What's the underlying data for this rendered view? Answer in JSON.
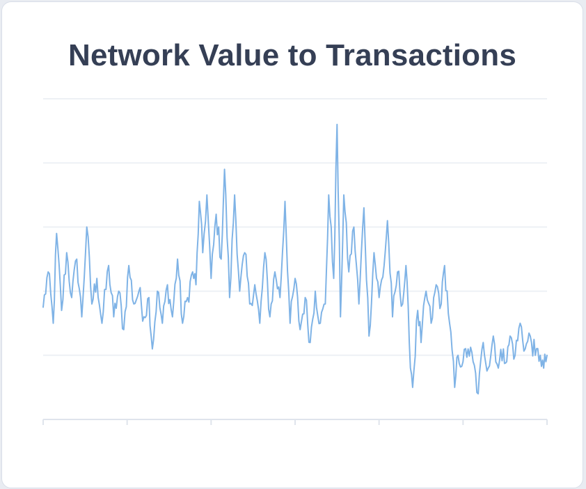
{
  "chart_data": {
    "type": "line",
    "title": "Network Value to Transactions",
    "xlabel": "",
    "ylabel": "",
    "ylim": [
      0,
      5
    ],
    "xlim": [
      0,
      600
    ],
    "grid": true,
    "line_color": "#7fb3e6",
    "grid_color": "#edf0f5",
    "axis_color": "#dfe4ec",
    "anchors": [
      [
        0,
        1.75
      ],
      [
        6,
        2.3
      ],
      [
        12,
        1.5
      ],
      [
        16,
        2.9
      ],
      [
        22,
        1.7
      ],
      [
        28,
        2.6
      ],
      [
        34,
        1.9
      ],
      [
        40,
        2.5
      ],
      [
        46,
        1.6
      ],
      [
        52,
        3.0
      ],
      [
        58,
        1.8
      ],
      [
        64,
        2.2
      ],
      [
        70,
        1.5
      ],
      [
        78,
        2.4
      ],
      [
        84,
        1.6
      ],
      [
        90,
        2.0
      ],
      [
        96,
        1.4
      ],
      [
        102,
        2.4
      ],
      [
        108,
        1.8
      ],
      [
        114,
        2.0
      ],
      [
        120,
        1.6
      ],
      [
        126,
        1.9
      ],
      [
        130,
        1.1
      ],
      [
        136,
        2.0
      ],
      [
        142,
        1.5
      ],
      [
        148,
        2.1
      ],
      [
        154,
        1.6
      ],
      [
        160,
        2.5
      ],
      [
        166,
        1.5
      ],
      [
        172,
        1.9
      ],
      [
        178,
        2.3
      ],
      [
        182,
        2.1
      ],
      [
        186,
        3.4
      ],
      [
        190,
        2.6
      ],
      [
        195,
        3.5
      ],
      [
        200,
        2.2
      ],
      [
        206,
        3.2
      ],
      [
        212,
        2.5
      ],
      [
        216,
        3.9
      ],
      [
        222,
        1.9
      ],
      [
        228,
        3.5
      ],
      [
        234,
        2.0
      ],
      [
        240,
        2.6
      ],
      [
        246,
        1.8
      ],
      [
        252,
        2.1
      ],
      [
        258,
        1.5
      ],
      [
        264,
        2.6
      ],
      [
        270,
        1.6
      ],
      [
        276,
        2.3
      ],
      [
        282,
        1.9
      ],
      [
        288,
        3.4
      ],
      [
        294,
        1.5
      ],
      [
        300,
        2.2
      ],
      [
        306,
        1.4
      ],
      [
        312,
        1.9
      ],
      [
        318,
        1.2
      ],
      [
        324,
        2.0
      ],
      [
        330,
        1.5
      ],
      [
        336,
        1.8
      ],
      [
        340,
        3.5
      ],
      [
        346,
        2.2
      ],
      [
        350,
        4.6
      ],
      [
        354,
        1.6
      ],
      [
        358,
        3.5
      ],
      [
        364,
        2.3
      ],
      [
        370,
        3.0
      ],
      [
        376,
        1.8
      ],
      [
        382,
        3.3
      ],
      [
        388,
        1.3
      ],
      [
        394,
        2.6
      ],
      [
        400,
        1.9
      ],
      [
        406,
        2.4
      ],
      [
        410,
        3.1
      ],
      [
        416,
        1.6
      ],
      [
        422,
        2.3
      ],
      [
        428,
        1.8
      ],
      [
        432,
        2.4
      ],
      [
        436,
        1.2
      ],
      [
        440,
        0.5
      ],
      [
        446,
        1.7
      ],
      [
        450,
        1.2
      ],
      [
        456,
        2.0
      ],
      [
        462,
        1.5
      ],
      [
        468,
        2.1
      ],
      [
        474,
        1.8
      ],
      [
        478,
        2.4
      ],
      [
        484,
        1.5
      ],
      [
        490,
        0.5
      ],
      [
        494,
        1.0
      ],
      [
        500,
        0.9
      ],
      [
        506,
        1.1
      ],
      [
        512,
        0.9
      ],
      [
        518,
        0.4
      ],
      [
        524,
        1.2
      ],
      [
        530,
        0.8
      ],
      [
        536,
        1.3
      ],
      [
        542,
        0.8
      ],
      [
        548,
        1.1
      ],
      [
        552,
        0.9
      ],
      [
        556,
        1.3
      ],
      [
        562,
        1.0
      ],
      [
        568,
        1.5
      ],
      [
        574,
        1.1
      ],
      [
        580,
        1.3
      ],
      [
        586,
        1.0
      ],
      [
        592,
        1.0
      ],
      [
        596,
        0.8
      ],
      [
        600,
        1.0
      ]
    ]
  }
}
